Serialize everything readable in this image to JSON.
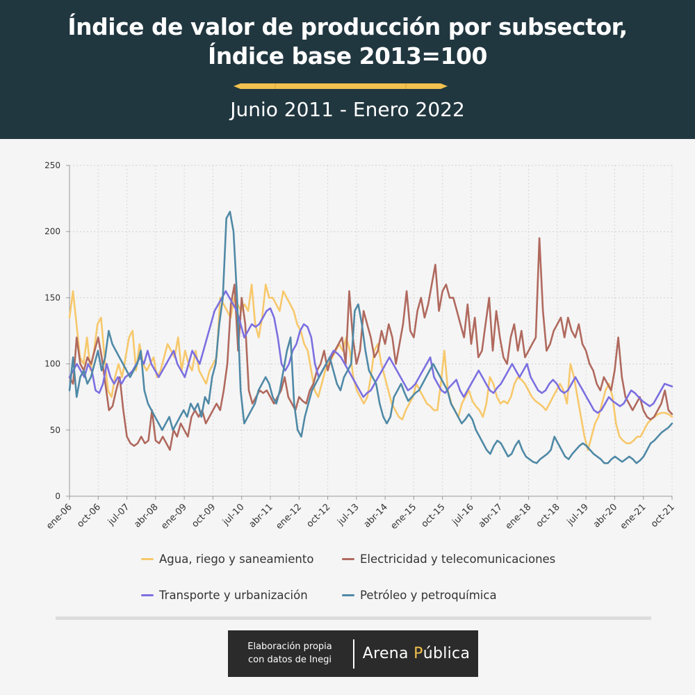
{
  "header": {
    "title_line1": "Índice de valor de producción por subsector,",
    "title_line2": "Índice base 2013=100",
    "subtitle": "Junio 2011 - Enero 2022"
  },
  "footer": {
    "credit_line1": "Elaboración propia",
    "credit_line2": "con datos de Inegi",
    "brand_part1": "Arena ",
    "brand_P": "P",
    "brand_part2": "ública"
  },
  "colors": {
    "header_bg": "#213740",
    "agua": "#f7c86b",
    "electricidad": "#b0695e",
    "transporte": "#7b6fe0",
    "petroleo": "#4f89a6",
    "accent": "#f2c14e"
  },
  "chart_data": {
    "type": "line",
    "x_ticks": [
      "ene-06",
      "oct-06",
      "jul-07",
      "abr-08",
      "ene-09",
      "oct-09",
      "jul-10",
      "abr-11",
      "ene-12",
      "oct-12",
      "jul-13",
      "abr-14",
      "ene-15",
      "oct-15",
      "jul-16",
      "abr-17",
      "ene-18",
      "oct-18",
      "jul-19",
      "abr-20",
      "ene-21",
      "oct-21"
    ],
    "y_ticks": [
      0,
      50,
      100,
      150,
      200,
      250
    ],
    "ylim": [
      0,
      250
    ],
    "grid": true,
    "legend_position": "bottom",
    "series": [
      {
        "name": "Agua, riego y saneamiento",
        "color": "#f7c86b",
        "values": [
          135,
          155,
          130,
          105,
          100,
          120,
          95,
          110,
          130,
          135,
          105,
          80,
          75,
          90,
          100,
          90,
          105,
          120,
          125,
          95,
          115,
          100,
          95,
          100,
          105,
          90,
          95,
          105,
          115,
          110,
          105,
          120,
          95,
          110,
          100,
          95,
          110,
          95,
          90,
          85,
          95,
          100,
          105,
          150,
          145,
          140,
          135,
          150,
          145,
          140,
          145,
          140,
          160,
          130,
          120,
          135,
          160,
          150,
          150,
          145,
          140,
          155,
          150,
          145,
          140,
          130,
          125,
          115,
          110,
          95,
          80,
          75,
          85,
          95,
          100,
          105,
          110,
          115,
          110,
          120,
          110,
          90,
          80,
          75,
          70,
          75,
          90,
          110,
          115,
          100,
          90,
          80,
          70,
          65,
          60,
          58,
          65,
          70,
          75,
          85,
          80,
          75,
          70,
          68,
          65,
          65,
          85,
          110,
          80,
          70,
          65,
          60,
          70,
          75,
          80,
          72,
          68,
          65,
          60,
          70,
          90,
          85,
          75,
          70,
          72,
          70,
          75,
          85,
          90,
          88,
          85,
          80,
          75,
          72,
          70,
          68,
          65,
          70,
          75,
          80,
          85,
          80,
          70,
          100,
          90,
          75,
          60,
          45,
          35,
          45,
          55,
          60,
          70,
          80,
          85,
          75,
          55,
          45,
          42,
          40,
          40,
          42,
          45,
          45,
          50,
          55,
          58,
          60,
          62,
          63,
          63,
          62,
          60
        ]
      },
      {
        "name": "Electricidad y telecomunicaciones",
        "color": "#b0695e",
        "values": [
          90,
          85,
          120,
          100,
          95,
          105,
          100,
          110,
          120,
          105,
          85,
          65,
          68,
          80,
          90,
          65,
          45,
          40,
          38,
          40,
          45,
          40,
          42,
          65,
          42,
          40,
          45,
          40,
          35,
          50,
          45,
          55,
          50,
          45,
          60,
          65,
          60,
          65,
          55,
          60,
          65,
          70,
          65,
          80,
          100,
          145,
          160,
          110,
          150,
          130,
          80,
          70,
          75,
          80,
          78,
          80,
          75,
          70,
          75,
          80,
          90,
          75,
          70,
          65,
          75,
          72,
          70,
          80,
          85,
          95,
          100,
          110,
          95,
          105,
          110,
          115,
          120,
          100,
          155,
          120,
          100,
          110,
          140,
          130,
          120,
          105,
          110,
          125,
          115,
          130,
          120,
          100,
          115,
          130,
          155,
          125,
          120,
          140,
          150,
          135,
          145,
          160,
          175,
          140,
          155,
          160,
          150,
          150,
          140,
          130,
          120,
          145,
          115,
          135,
          105,
          110,
          130,
          150,
          110,
          140,
          120,
          105,
          100,
          120,
          130,
          110,
          125,
          105,
          110,
          115,
          120,
          195,
          140,
          110,
          115,
          125,
          130,
          135,
          120,
          135,
          125,
          120,
          130,
          115,
          110,
          100,
          95,
          85,
          80,
          90,
          85,
          80,
          95,
          120,
          90,
          75,
          70,
          65,
          70,
          75,
          65,
          60,
          58,
          60,
          65,
          70,
          80,
          65,
          62
        ]
      },
      {
        "name": "Transporte y urbanización",
        "color": "#7b6fe0",
        "values": [
          90,
          95,
          100,
          95,
          90,
          100,
          95,
          80,
          78,
          85,
          100,
          90,
          85,
          90,
          85,
          90,
          92,
          95,
          100,
          105,
          100,
          110,
          100,
          95,
          90,
          95,
          100,
          105,
          110,
          100,
          95,
          90,
          100,
          110,
          105,
          100,
          110,
          120,
          130,
          140,
          145,
          150,
          155,
          150,
          145,
          140,
          130,
          120,
          125,
          130,
          128,
          130,
          135,
          140,
          142,
          135,
          120,
          100,
          95,
          100,
          110,
          115,
          125,
          130,
          128,
          120,
          100,
          90,
          95,
          100,
          105,
          110,
          108,
          105,
          100,
          95,
          90,
          85,
          80,
          75,
          78,
          80,
          85,
          90,
          95,
          100,
          105,
          100,
          95,
          90,
          85,
          80,
          82,
          85,
          90,
          95,
          100,
          105,
          90,
          85,
          80,
          78,
          82,
          85,
          88,
          80,
          75,
          80,
          85,
          90,
          95,
          90,
          85,
          80,
          78,
          82,
          85,
          90,
          95,
          100,
          95,
          90,
          95,
          100,
          90,
          85,
          80,
          78,
          80,
          85,
          88,
          85,
          80,
          78,
          80,
          85,
          90,
          85,
          80,
          75,
          70,
          65,
          63,
          65,
          70,
          75,
          72,
          70,
          68,
          70,
          75,
          80,
          78,
          75,
          72,
          70,
          68,
          70,
          75,
          80,
          85,
          84,
          83
        ]
      },
      {
        "name": "Petróleo y petroquímica",
        "color": "#4f89a6",
        "values": [
          80,
          105,
          75,
          90,
          95,
          85,
          90,
          100,
          110,
          95,
          105,
          125,
          115,
          110,
          105,
          100,
          95,
          90,
          95,
          100,
          110,
          80,
          70,
          65,
          60,
          55,
          50,
          55,
          60,
          50,
          55,
          60,
          65,
          60,
          70,
          65,
          70,
          60,
          75,
          70,
          90,
          100,
          130,
          150,
          210,
          215,
          200,
          150,
          80,
          55,
          60,
          65,
          70,
          80,
          85,
          90,
          85,
          75,
          70,
          80,
          95,
          110,
          120,
          70,
          50,
          45,
          60,
          70,
          80,
          85,
          90,
          95,
          100,
          105,
          95,
          85,
          80,
          90,
          95,
          100,
          140,
          145,
          130,
          110,
          95,
          90,
          85,
          70,
          60,
          55,
          60,
          75,
          80,
          85,
          78,
          72,
          75,
          78,
          80,
          85,
          90,
          95,
          100,
          95,
          90,
          85,
          80,
          70,
          65,
          60,
          55,
          58,
          62,
          58,
          50,
          45,
          40,
          35,
          32,
          38,
          42,
          40,
          35,
          30,
          32,
          38,
          42,
          35,
          30,
          28,
          26,
          25,
          28,
          30,
          32,
          35,
          45,
          40,
          35,
          30,
          28,
          32,
          35,
          38,
          40,
          38,
          35,
          32,
          30,
          28,
          25,
          25,
          28,
          30,
          28,
          26,
          28,
          30,
          28,
          25,
          27,
          30,
          35,
          40,
          42,
          45,
          48,
          50,
          52,
          55
        ]
      }
    ]
  }
}
